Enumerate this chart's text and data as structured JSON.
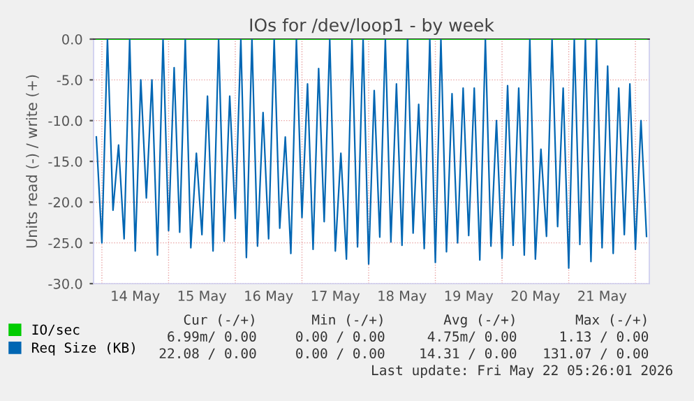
{
  "chart_data": {
    "type": "line",
    "title": "IOs for /dev/loop1 - by week",
    "ylabel": "Units read (-) / write (+)",
    "xlim": [
      "2026-05-13T21:00",
      "2026-05-22T05:00"
    ],
    "xticks": [
      {
        "value": "2026-05-14T00:00",
        "label": null
      },
      {
        "value": "2026-05-14T12:00",
        "label": "14 May"
      },
      {
        "value": "2026-05-15T00:00",
        "label": null
      },
      {
        "value": "2026-05-15T12:00",
        "label": "15 May"
      },
      {
        "value": "2026-05-16T00:00",
        "label": null
      },
      {
        "value": "2026-05-16T12:00",
        "label": "16 May"
      },
      {
        "value": "2026-05-17T00:00",
        "label": null
      },
      {
        "value": "2026-05-17T12:00",
        "label": "17 May"
      },
      {
        "value": "2026-05-18T00:00",
        "label": null
      },
      {
        "value": "2026-05-18T12:00",
        "label": "18 May"
      },
      {
        "value": "2026-05-19T00:00",
        "label": null
      },
      {
        "value": "2026-05-19T12:00",
        "label": "19 May"
      },
      {
        "value": "2026-05-20T00:00",
        "label": null
      },
      {
        "value": "2026-05-20T12:00",
        "label": "20 May"
      },
      {
        "value": "2026-05-21T00:00",
        "label": null
      },
      {
        "value": "2026-05-21T12:00",
        "label": "21 May"
      },
      {
        "value": "2026-05-22T00:00",
        "label": null
      }
    ],
    "ylim": [
      -30,
      0
    ],
    "yticks": [
      {
        "value": -30,
        "label": "-30.0"
      },
      {
        "value": -25,
        "label": "-25.0"
      },
      {
        "value": -20,
        "label": "-20.0"
      },
      {
        "value": -15,
        "label": "-15.0"
      },
      {
        "value": -10,
        "label": "-10.0"
      },
      {
        "value": -5,
        "label": "-5.0"
      },
      {
        "value": 0,
        "label": "0.0"
      }
    ],
    "grid": true,
    "legend": "bottom left",
    "series": [
      {
        "name": "IO/sec",
        "color": "#00cc00",
        "x": [
          "2026-05-13T22:00",
          "2026-05-22T04:00"
        ],
        "values": [
          0,
          0
        ]
      },
      {
        "name": "Req Size (KB)",
        "color": "#0066b3",
        "x": [
          "2026-05-13T22:00",
          "2026-05-14T00:00",
          "2026-05-14T02:00",
          "2026-05-14T04:00",
          "2026-05-14T06:00",
          "2026-05-14T08:00",
          "2026-05-14T10:00",
          "2026-05-14T12:00",
          "2026-05-14T14:00",
          "2026-05-14T16:00",
          "2026-05-14T18:00",
          "2026-05-14T20:00",
          "2026-05-14T22:00",
          "2026-05-15T00:00",
          "2026-05-15T02:00",
          "2026-05-15T04:00",
          "2026-05-15T06:00",
          "2026-05-15T08:00",
          "2026-05-15T10:00",
          "2026-05-15T12:00",
          "2026-05-15T14:00",
          "2026-05-15T16:00",
          "2026-05-15T18:00",
          "2026-05-15T20:00",
          "2026-05-15T22:00",
          "2026-05-16T00:00",
          "2026-05-16T02:00",
          "2026-05-16T04:00",
          "2026-05-16T06:00",
          "2026-05-16T08:00",
          "2026-05-16T10:00",
          "2026-05-16T12:00",
          "2026-05-16T14:00",
          "2026-05-16T16:00",
          "2026-05-16T18:00",
          "2026-05-16T20:00",
          "2026-05-16T22:00",
          "2026-05-17T00:00",
          "2026-05-17T02:00",
          "2026-05-17T04:00",
          "2026-05-17T06:00",
          "2026-05-17T08:00",
          "2026-05-17T10:00",
          "2026-05-17T12:00",
          "2026-05-17T14:00",
          "2026-05-17T16:00",
          "2026-05-17T18:00",
          "2026-05-17T20:00",
          "2026-05-17T22:00",
          "2026-05-18T00:00",
          "2026-05-18T02:00",
          "2026-05-18T04:00",
          "2026-05-18T06:00",
          "2026-05-18T08:00",
          "2026-05-18T10:00",
          "2026-05-18T12:00",
          "2026-05-18T14:00",
          "2026-05-18T16:00",
          "2026-05-18T18:00",
          "2026-05-18T20:00",
          "2026-05-18T22:00",
          "2026-05-19T00:00",
          "2026-05-19T02:00",
          "2026-05-19T04:00",
          "2026-05-19T06:00",
          "2026-05-19T08:00",
          "2026-05-19T10:00",
          "2026-05-19T12:00",
          "2026-05-19T14:00",
          "2026-05-19T16:00",
          "2026-05-19T18:00",
          "2026-05-19T20:00",
          "2026-05-19T22:00",
          "2026-05-20T00:00",
          "2026-05-20T02:00",
          "2026-05-20T04:00",
          "2026-05-20T06:00",
          "2026-05-20T08:00",
          "2026-05-20T10:00",
          "2026-05-20T12:00",
          "2026-05-20T14:00",
          "2026-05-20T16:00",
          "2026-05-20T18:00",
          "2026-05-20T20:00",
          "2026-05-20T22:00",
          "2026-05-21T00:00",
          "2026-05-21T02:00",
          "2026-05-21T04:00",
          "2026-05-21T06:00",
          "2026-05-21T08:00",
          "2026-05-21T10:00",
          "2026-05-21T12:00",
          "2026-05-21T14:00",
          "2026-05-21T16:00",
          "2026-05-21T18:00",
          "2026-05-21T20:00",
          "2026-05-21T22:00",
          "2026-05-22T00:00",
          "2026-05-22T02:00",
          "2026-05-22T04:00"
        ],
        "values": [
          -12,
          -25,
          0,
          -21,
          -13,
          -24.5,
          0,
          -26,
          -5,
          -19.5,
          -5,
          -26.5,
          0,
          -23.5,
          -3.5,
          -23.7,
          0,
          -25.6,
          -14,
          -24,
          -7,
          -26,
          0,
          -24.8,
          -7,
          -22,
          0,
          -26.8,
          0,
          -25.4,
          -9,
          -24.5,
          0,
          -23.2,
          -12,
          -26.3,
          0,
          -21.9,
          -5.5,
          -25.8,
          -3.6,
          -22.4,
          0,
          -26,
          -14,
          -27,
          0,
          -25.5,
          0,
          -27.6,
          -6.3,
          -24.3,
          0,
          -24.9,
          -5.5,
          -25.3,
          0,
          -23.8,
          -8,
          -25.7,
          0,
          -27.4,
          0,
          -26.1,
          -6.7,
          -25,
          -6,
          -24.1,
          -6,
          -27.1,
          0,
          -25.4,
          -10,
          -26.9,
          -5.7,
          -25.3,
          -6,
          -26.5,
          0,
          -27,
          -13.5,
          -24.2,
          0,
          -23,
          -6,
          -28.1,
          0,
          -25.2,
          0,
          -27.3,
          0,
          -25.6,
          -3.3,
          -26.3,
          -6,
          -24,
          -5.5,
          -25.8,
          -10,
          -24.2
        ]
      }
    ],
    "annotations": [
      "Cur (-/+)",
      "Min (-/+)",
      "Avg (-/+)",
      "Max (-/+)",
      "6.99m/ 0.00",
      "0.00 / 0.00",
      "4.75m/ 0.00",
      "1.13 / 0.00",
      "22.08 / 0.00",
      "0.00 / 0.00",
      "14.31 / 0.00",
      "131.07 / 0.00",
      "Last update: Fri May 22 05:26:01 2026"
    ]
  }
}
